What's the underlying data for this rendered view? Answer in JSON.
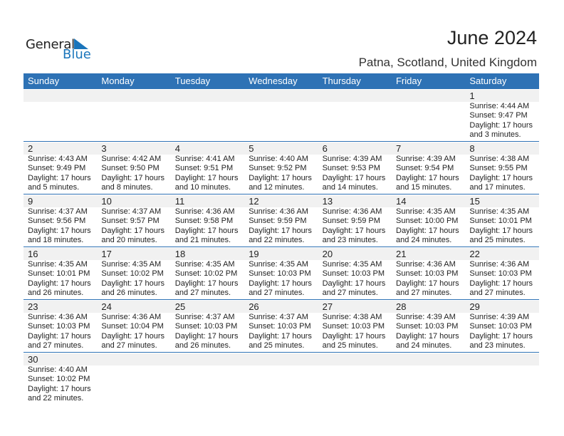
{
  "logo": {
    "general": "General",
    "blue": "Blue"
  },
  "title": "June 2024",
  "location": "Patna, Scotland, United Kingdom",
  "colors": {
    "accent": "#2e72b5",
    "band": "#f1f1f1"
  },
  "weekdays": [
    "Sunday",
    "Monday",
    "Tuesday",
    "Wednesday",
    "Thursday",
    "Friday",
    "Saturday"
  ],
  "weeks": [
    [
      null,
      null,
      null,
      null,
      null,
      null,
      {
        "day": "1",
        "sunrise": "Sunrise: 4:44 AM",
        "sunset": "Sunset: 9:47 PM",
        "daylight1": "Daylight: 17 hours",
        "daylight2": "and 3 minutes."
      }
    ],
    [
      {
        "day": "2",
        "sunrise": "Sunrise: 4:43 AM",
        "sunset": "Sunset: 9:49 PM",
        "daylight1": "Daylight: 17 hours",
        "daylight2": "and 5 minutes."
      },
      {
        "day": "3",
        "sunrise": "Sunrise: 4:42 AM",
        "sunset": "Sunset: 9:50 PM",
        "daylight1": "Daylight: 17 hours",
        "daylight2": "and 8 minutes."
      },
      {
        "day": "4",
        "sunrise": "Sunrise: 4:41 AM",
        "sunset": "Sunset: 9:51 PM",
        "daylight1": "Daylight: 17 hours",
        "daylight2": "and 10 minutes."
      },
      {
        "day": "5",
        "sunrise": "Sunrise: 4:40 AM",
        "sunset": "Sunset: 9:52 PM",
        "daylight1": "Daylight: 17 hours",
        "daylight2": "and 12 minutes."
      },
      {
        "day": "6",
        "sunrise": "Sunrise: 4:39 AM",
        "sunset": "Sunset: 9:53 PM",
        "daylight1": "Daylight: 17 hours",
        "daylight2": "and 14 minutes."
      },
      {
        "day": "7",
        "sunrise": "Sunrise: 4:39 AM",
        "sunset": "Sunset: 9:54 PM",
        "daylight1": "Daylight: 17 hours",
        "daylight2": "and 15 minutes."
      },
      {
        "day": "8",
        "sunrise": "Sunrise: 4:38 AM",
        "sunset": "Sunset: 9:55 PM",
        "daylight1": "Daylight: 17 hours",
        "daylight2": "and 17 minutes."
      }
    ],
    [
      {
        "day": "9",
        "sunrise": "Sunrise: 4:37 AM",
        "sunset": "Sunset: 9:56 PM",
        "daylight1": "Daylight: 17 hours",
        "daylight2": "and 18 minutes."
      },
      {
        "day": "10",
        "sunrise": "Sunrise: 4:37 AM",
        "sunset": "Sunset: 9:57 PM",
        "daylight1": "Daylight: 17 hours",
        "daylight2": "and 20 minutes."
      },
      {
        "day": "11",
        "sunrise": "Sunrise: 4:36 AM",
        "sunset": "Sunset: 9:58 PM",
        "daylight1": "Daylight: 17 hours",
        "daylight2": "and 21 minutes."
      },
      {
        "day": "12",
        "sunrise": "Sunrise: 4:36 AM",
        "sunset": "Sunset: 9:59 PM",
        "daylight1": "Daylight: 17 hours",
        "daylight2": "and 22 minutes."
      },
      {
        "day": "13",
        "sunrise": "Sunrise: 4:36 AM",
        "sunset": "Sunset: 9:59 PM",
        "daylight1": "Daylight: 17 hours",
        "daylight2": "and 23 minutes."
      },
      {
        "day": "14",
        "sunrise": "Sunrise: 4:35 AM",
        "sunset": "Sunset: 10:00 PM",
        "daylight1": "Daylight: 17 hours",
        "daylight2": "and 24 minutes."
      },
      {
        "day": "15",
        "sunrise": "Sunrise: 4:35 AM",
        "sunset": "Sunset: 10:01 PM",
        "daylight1": "Daylight: 17 hours",
        "daylight2": "and 25 minutes."
      }
    ],
    [
      {
        "day": "16",
        "sunrise": "Sunrise: 4:35 AM",
        "sunset": "Sunset: 10:01 PM",
        "daylight1": "Daylight: 17 hours",
        "daylight2": "and 26 minutes."
      },
      {
        "day": "17",
        "sunrise": "Sunrise: 4:35 AM",
        "sunset": "Sunset: 10:02 PM",
        "daylight1": "Daylight: 17 hours",
        "daylight2": "and 26 minutes."
      },
      {
        "day": "18",
        "sunrise": "Sunrise: 4:35 AM",
        "sunset": "Sunset: 10:02 PM",
        "daylight1": "Daylight: 17 hours",
        "daylight2": "and 27 minutes."
      },
      {
        "day": "19",
        "sunrise": "Sunrise: 4:35 AM",
        "sunset": "Sunset: 10:03 PM",
        "daylight1": "Daylight: 17 hours",
        "daylight2": "and 27 minutes."
      },
      {
        "day": "20",
        "sunrise": "Sunrise: 4:35 AM",
        "sunset": "Sunset: 10:03 PM",
        "daylight1": "Daylight: 17 hours",
        "daylight2": "and 27 minutes."
      },
      {
        "day": "21",
        "sunrise": "Sunrise: 4:36 AM",
        "sunset": "Sunset: 10:03 PM",
        "daylight1": "Daylight: 17 hours",
        "daylight2": "and 27 minutes."
      },
      {
        "day": "22",
        "sunrise": "Sunrise: 4:36 AM",
        "sunset": "Sunset: 10:03 PM",
        "daylight1": "Daylight: 17 hours",
        "daylight2": "and 27 minutes."
      }
    ],
    [
      {
        "day": "23",
        "sunrise": "Sunrise: 4:36 AM",
        "sunset": "Sunset: 10:03 PM",
        "daylight1": "Daylight: 17 hours",
        "daylight2": "and 27 minutes."
      },
      {
        "day": "24",
        "sunrise": "Sunrise: 4:36 AM",
        "sunset": "Sunset: 10:04 PM",
        "daylight1": "Daylight: 17 hours",
        "daylight2": "and 27 minutes."
      },
      {
        "day": "25",
        "sunrise": "Sunrise: 4:37 AM",
        "sunset": "Sunset: 10:03 PM",
        "daylight1": "Daylight: 17 hours",
        "daylight2": "and 26 minutes."
      },
      {
        "day": "26",
        "sunrise": "Sunrise: 4:37 AM",
        "sunset": "Sunset: 10:03 PM",
        "daylight1": "Daylight: 17 hours",
        "daylight2": "and 25 minutes."
      },
      {
        "day": "27",
        "sunrise": "Sunrise: 4:38 AM",
        "sunset": "Sunset: 10:03 PM",
        "daylight1": "Daylight: 17 hours",
        "daylight2": "and 25 minutes."
      },
      {
        "day": "28",
        "sunrise": "Sunrise: 4:39 AM",
        "sunset": "Sunset: 10:03 PM",
        "daylight1": "Daylight: 17 hours",
        "daylight2": "and 24 minutes."
      },
      {
        "day": "29",
        "sunrise": "Sunrise: 4:39 AM",
        "sunset": "Sunset: 10:03 PM",
        "daylight1": "Daylight: 17 hours",
        "daylight2": "and 23 minutes."
      }
    ],
    [
      {
        "day": "30",
        "sunrise": "Sunrise: 4:40 AM",
        "sunset": "Sunset: 10:02 PM",
        "daylight1": "Daylight: 17 hours",
        "daylight2": "and 22 minutes."
      },
      null,
      null,
      null,
      null,
      null,
      null
    ]
  ]
}
